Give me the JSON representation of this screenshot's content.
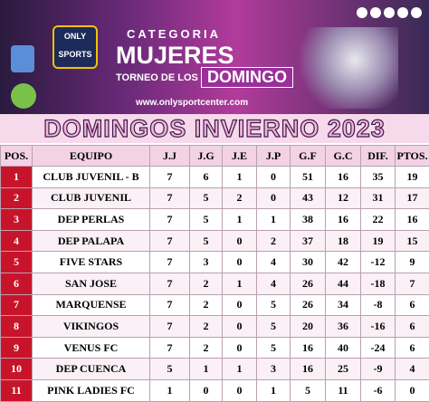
{
  "header": {
    "brand": "ONLY SPORTS",
    "category_label": "CATEGORIA",
    "category": "MUJERES",
    "tournament_prefix": "TORNEO DE LOS",
    "tournament_day": "DOMINGO",
    "website": "www.onlysportcenter.com"
  },
  "title": "DOMINGOS INVIERNO 2023",
  "table": {
    "columns": [
      "POS.",
      "EQUIPO",
      "J.J",
      "J.G",
      "J.E",
      "J.P",
      "G.F",
      "G.C",
      "DIF.",
      "PTOS."
    ],
    "rows": [
      [
        1,
        "CLUB JUVENIL - B",
        7,
        6,
        1,
        0,
        51,
        16,
        35,
        19
      ],
      [
        2,
        "CLUB JUVENIL",
        7,
        5,
        2,
        0,
        43,
        12,
        31,
        17
      ],
      [
        3,
        "DEP PERLAS",
        7,
        5,
        1,
        1,
        38,
        16,
        22,
        16
      ],
      [
        4,
        "DEP PALAPA",
        7,
        5,
        0,
        2,
        37,
        18,
        19,
        15
      ],
      [
        5,
        "FIVE STARS",
        7,
        3,
        0,
        4,
        30,
        42,
        -12,
        9
      ],
      [
        6,
        "SAN JOSE",
        7,
        2,
        1,
        4,
        26,
        44,
        -18,
        7
      ],
      [
        7,
        "MARQUENSE",
        7,
        2,
        0,
        5,
        26,
        34,
        -8,
        6
      ],
      [
        8,
        "VIKINGOS",
        7,
        2,
        0,
        5,
        20,
        36,
        -16,
        6
      ],
      [
        9,
        "VENUS FC",
        7,
        2,
        0,
        5,
        16,
        40,
        -24,
        6
      ],
      [
        10,
        "DEP CUENCA",
        5,
        1,
        1,
        3,
        16,
        25,
        -9,
        4
      ],
      [
        11,
        "PINK LADIES FC",
        1,
        0,
        0,
        1,
        5,
        11,
        -6,
        0
      ]
    ]
  }
}
